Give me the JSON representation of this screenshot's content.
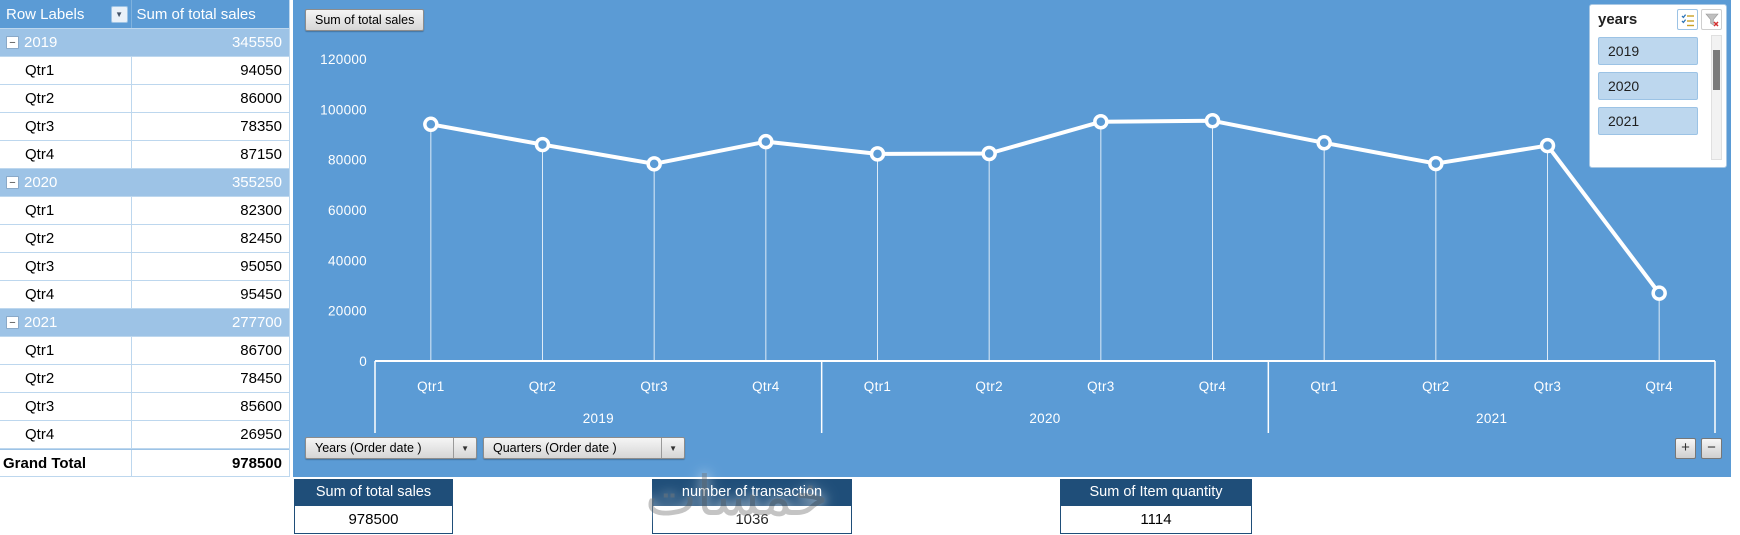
{
  "pivot_table": {
    "headers": {
      "row_labels": "Row Labels",
      "values": "Sum of total sales"
    },
    "rows": [
      {
        "type": "year",
        "label": "2019",
        "value": "345550"
      },
      {
        "type": "qtr",
        "label": "Qtr1",
        "value": "94050"
      },
      {
        "type": "qtr",
        "label": "Qtr2",
        "value": "86000"
      },
      {
        "type": "qtr",
        "label": "Qtr3",
        "value": "78350"
      },
      {
        "type": "qtr",
        "label": "Qtr4",
        "value": "87150"
      },
      {
        "type": "year",
        "label": "2020",
        "value": "355250"
      },
      {
        "type": "qtr",
        "label": "Qtr1",
        "value": "82300"
      },
      {
        "type": "qtr",
        "label": "Qtr2",
        "value": "82450"
      },
      {
        "type": "qtr",
        "label": "Qtr3",
        "value": "95050"
      },
      {
        "type": "qtr",
        "label": "Qtr4",
        "value": "95450"
      },
      {
        "type": "year",
        "label": "2021",
        "value": "277700"
      },
      {
        "type": "qtr",
        "label": "Qtr1",
        "value": "86700"
      },
      {
        "type": "qtr",
        "label": "Qtr2",
        "value": "78450"
      },
      {
        "type": "qtr",
        "label": "Qtr3",
        "value": "85600"
      },
      {
        "type": "qtr",
        "label": "Qtr4",
        "value": "26950"
      },
      {
        "type": "grand",
        "label": "Grand Total",
        "value": "978500"
      }
    ]
  },
  "chart": {
    "value_field_button": "Sum of total sales",
    "axis_field_buttons": [
      "Years (Order date )",
      "Quarters (Order date )"
    ]
  },
  "chart_data": {
    "type": "line",
    "title": "Sum of total sales",
    "series": [
      {
        "name": "Sum of total sales",
        "values": [
          94050,
          86000,
          78350,
          87150,
          82300,
          82450,
          95050,
          95450,
          86700,
          78450,
          85600,
          26950
        ]
      }
    ],
    "categories": [
      "Qtr1",
      "Qtr2",
      "Qtr3",
      "Qtr4",
      "Qtr1",
      "Qtr2",
      "Qtr3",
      "Qtr4",
      "Qtr1",
      "Qtr2",
      "Qtr3",
      "Qtr4"
    ],
    "category_groups": [
      {
        "label": "2019",
        "count": 4
      },
      {
        "label": "2020",
        "count": 4
      },
      {
        "label": "2021",
        "count": 4
      }
    ],
    "ylim": [
      0,
      120000
    ],
    "yticks": [
      0,
      20000,
      40000,
      60000,
      80000,
      100000,
      120000
    ],
    "grid": false,
    "legend": "none",
    "plot_bg": "#5B9BD5",
    "line_color": "#FFFFFF"
  },
  "slicer": {
    "title": "years",
    "items": [
      "2019",
      "2020",
      "2021"
    ]
  },
  "cards": [
    {
      "title": "Sum of total sales",
      "value": "978500"
    },
    {
      "title": "number of transaction",
      "value": "1036"
    },
    {
      "title": "Sum of Item quantity",
      "value": "1114"
    }
  ],
  "icons": {
    "filter_dropdown": "▼",
    "dropdown_arrow": "▼",
    "collapse": "−",
    "plus": "+",
    "minus": "−"
  },
  "colors": {
    "chart_bg": "#5B9BD5",
    "header_blue": "#5B9BD5",
    "year_row_blue": "#9DC3E6",
    "slicer_item_blue": "#BDD7EE",
    "card_navy": "#1F4E79",
    "line_white": "#FFFFFF"
  },
  "watermark": "خمسات"
}
